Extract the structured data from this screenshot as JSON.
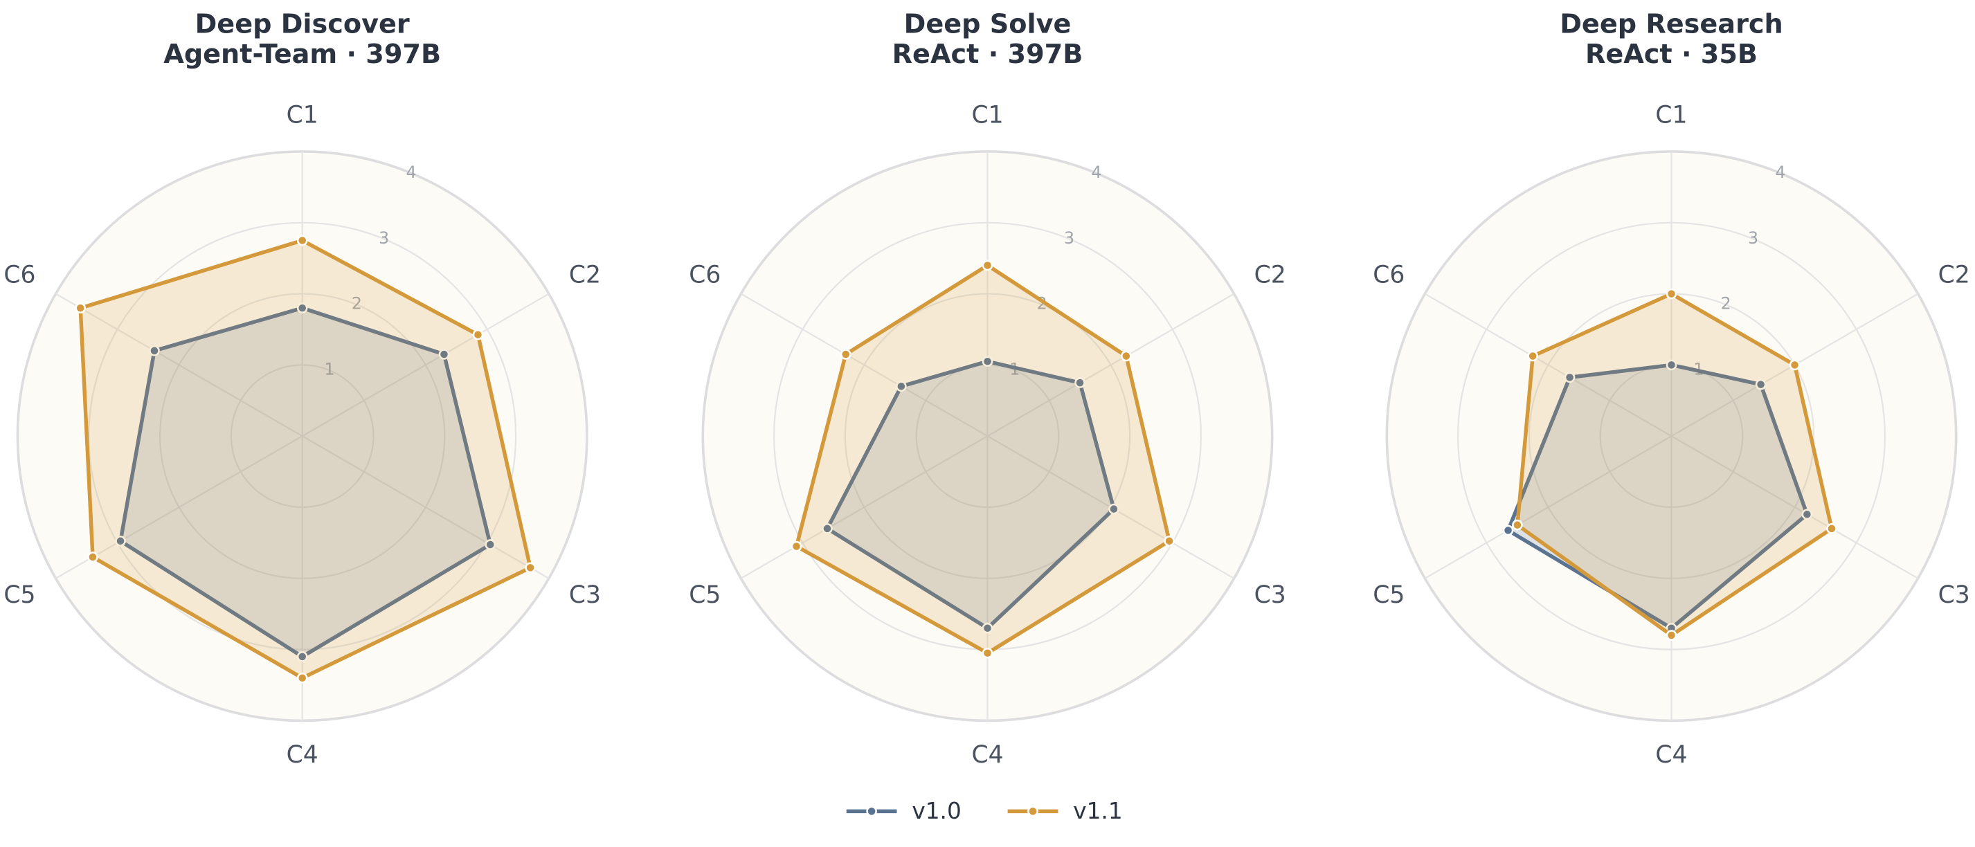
{
  "chart_data": [
    {
      "type": "radar",
      "title": "Deep Discover",
      "subtitle": "Agent-Team · 397B",
      "categories": [
        "C1",
        "C2",
        "C3",
        "C4",
        "C5",
        "C6"
      ],
      "rlim": [
        0,
        4
      ],
      "rticks": [
        1,
        2,
        3,
        4
      ],
      "series": [
        {
          "name": "v1.0",
          "color": "#5b7393",
          "values": [
            1.8,
            2.3,
            3.05,
            3.1,
            2.95,
            2.4
          ]
        },
        {
          "name": "v1.1",
          "color": "#d4993a",
          "values": [
            2.75,
            2.85,
            3.7,
            3.4,
            3.4,
            3.6
          ]
        }
      ]
    },
    {
      "type": "radar",
      "title": "Deep Solve",
      "subtitle": "ReAct · 397B",
      "categories": [
        "C1",
        "C2",
        "C3",
        "C4",
        "C5",
        "C6"
      ],
      "rlim": [
        0,
        4
      ],
      "rticks": [
        1,
        2,
        3,
        4
      ],
      "series": [
        {
          "name": "v1.0",
          "color": "#5b7393",
          "values": [
            1.05,
            1.5,
            2.05,
            2.7,
            2.6,
            1.4
          ]
        },
        {
          "name": "v1.1",
          "color": "#d4993a",
          "values": [
            2.4,
            2.25,
            2.95,
            3.05,
            3.1,
            2.3
          ]
        }
      ]
    },
    {
      "type": "radar",
      "title": "Deep Research",
      "subtitle": "ReAct · 35B",
      "categories": [
        "C1",
        "C2",
        "C3",
        "C4",
        "C5",
        "C6"
      ],
      "rlim": [
        0,
        4
      ],
      "rticks": [
        1,
        2,
        3,
        4
      ],
      "series": [
        {
          "name": "v1.0",
          "color": "#5b7393",
          "values": [
            1.0,
            1.45,
            2.2,
            2.7,
            2.65,
            1.65
          ]
        },
        {
          "name": "v1.1",
          "color": "#d4993a",
          "values": [
            2.0,
            2.0,
            2.6,
            2.8,
            2.5,
            2.25
          ]
        }
      ]
    }
  ]
}
